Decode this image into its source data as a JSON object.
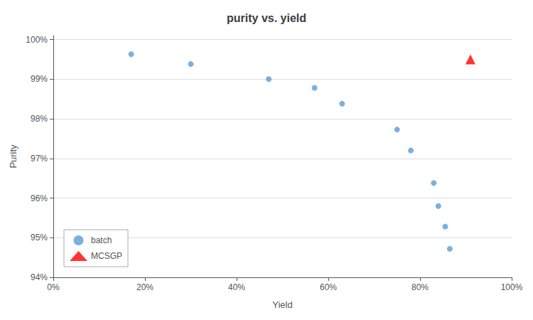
{
  "chart_data": {
    "type": "scatter",
    "title": "purity vs. yield",
    "xlabel": "Yield",
    "ylabel": "Purity",
    "series": [
      {
        "name": "batch",
        "color": "#5B9BD5",
        "marker": "circle",
        "x": [
          0.17,
          0.3,
          0.47,
          0.57,
          0.63,
          0.75,
          0.78,
          0.83,
          0.84,
          0.855,
          0.865
        ],
        "values": [
          0.9963,
          0.9938,
          0.99,
          0.9878,
          0.9838,
          0.9773,
          0.972,
          0.9638,
          0.958,
          0.9528,
          0.9472
        ]
      },
      {
        "name": "MCSGP",
        "color": "#FF0000",
        "marker": "triangle",
        "x": [
          0.91
        ],
        "values": [
          0.995
        ]
      }
    ],
    "xlim": [
      0.0,
      1.0
    ],
    "ylim": [
      0.94,
      1.001
    ],
    "xticks": [
      {
        "value": 0.0,
        "label": "0%"
      },
      {
        "value": 0.2,
        "label": "20%"
      },
      {
        "value": 0.4,
        "label": "40%"
      },
      {
        "value": 0.6,
        "label": "60%"
      },
      {
        "value": 0.8,
        "label": "80%"
      },
      {
        "value": 1.0,
        "label": "100%"
      }
    ],
    "yticks": [
      {
        "value": 0.94,
        "label": "94%"
      },
      {
        "value": 0.95,
        "label": "95%"
      },
      {
        "value": 0.96,
        "label": "96%"
      },
      {
        "value": 0.97,
        "label": "97%"
      },
      {
        "value": 0.98,
        "label": "98%"
      },
      {
        "value": 0.99,
        "label": "99%"
      },
      {
        "value": 1.0,
        "label": "100%"
      }
    ],
    "grid": "y",
    "legend": "lower left"
  }
}
